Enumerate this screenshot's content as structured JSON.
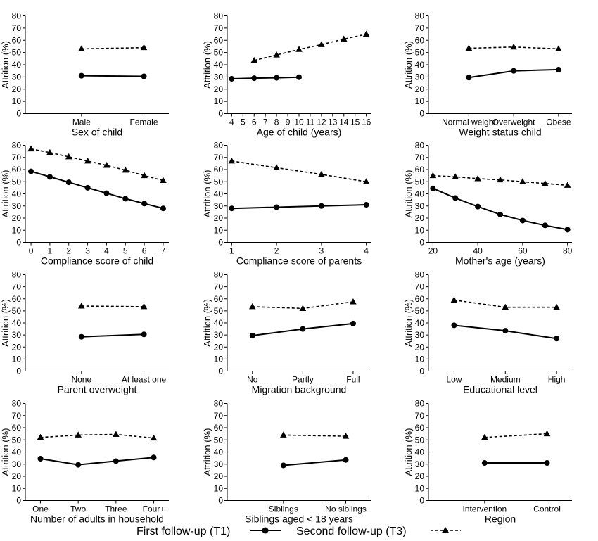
{
  "colors": {
    "axis": "#000000",
    "series": "#000000",
    "background": "#ffffff"
  },
  "legend": {
    "t1_label": "First follow-up (T1)",
    "t3_label": "Second follow-up (T3)",
    "t1_marker": "circle",
    "t3_marker": "triangle",
    "t1_line": "solid",
    "t3_line": "dashed"
  },
  "chart_data": [
    {
      "type": "line",
      "xlabel": "Sex of child",
      "ylabel": "Attrition (%)",
      "ylim": [
        0,
        80
      ],
      "yticks": [
        0,
        10,
        20,
        30,
        40,
        50,
        60,
        70,
        80
      ],
      "categories": [
        "Male",
        "Female"
      ],
      "xlim": [
        -0.9,
        1.4
      ],
      "series": [
        {
          "name": "First follow-up (T1)",
          "values": [
            31,
            30.5
          ]
        },
        {
          "name": "Second follow-up (T3)",
          "values": [
            53,
            54
          ]
        }
      ]
    },
    {
      "type": "line",
      "xlabel": "Age of child (years)",
      "ylabel": "Attrition (%)",
      "ylim": [
        0,
        80
      ],
      "yticks": [
        0,
        10,
        20,
        30,
        40,
        50,
        60,
        70,
        80
      ],
      "x": [
        4,
        5,
        6,
        7,
        8,
        9,
        10,
        11,
        12,
        13,
        14,
        15,
        16
      ],
      "xlim": [
        3.6,
        16.4
      ],
      "xticks": [
        4,
        5,
        6,
        7,
        8,
        9,
        10,
        11,
        12,
        13,
        14,
        15,
        16
      ],
      "series": [
        {
          "name": "First follow-up (T1)",
          "x": [
            4,
            6,
            8,
            10
          ],
          "values": [
            28.5,
            29,
            29.3,
            29.8
          ]
        },
        {
          "name": "Second follow-up (T3)",
          "x": [
            6,
            8,
            10,
            12,
            14,
            16
          ],
          "values": [
            43.5,
            48,
            52.5,
            56.5,
            61,
            65
          ]
        }
      ]
    },
    {
      "type": "line",
      "xlabel": "Weight status child",
      "ylabel": "Attrition (%)",
      "ylim": [
        0,
        80
      ],
      "yticks": [
        0,
        10,
        20,
        30,
        40,
        50,
        60,
        70,
        80
      ],
      "categories": [
        "Normal weight",
        "Overweight",
        "Obese"
      ],
      "xlim": [
        -0.9,
        2.3
      ],
      "series": [
        {
          "name": "First follow-up (T1)",
          "values": [
            29.5,
            35,
            36
          ]
        },
        {
          "name": "Second follow-up (T3)",
          "values": [
            53.5,
            54.5,
            53
          ]
        }
      ]
    },
    {
      "type": "line",
      "xlabel": "Compliance score of child",
      "ylabel": "Attrition (%)",
      "ylim": [
        0,
        80
      ],
      "yticks": [
        0,
        10,
        20,
        30,
        40,
        50,
        60,
        70,
        80
      ],
      "x": [
        0,
        1,
        2,
        3,
        4,
        5,
        6,
        7
      ],
      "xlim": [
        -0.3,
        7.3
      ],
      "xticks": [
        0,
        1,
        2,
        3,
        4,
        5,
        6,
        7
      ],
      "series": [
        {
          "name": "First follow-up (T1)",
          "values": [
            58.5,
            54,
            49.5,
            45,
            40.5,
            36,
            32,
            28
          ]
        },
        {
          "name": "Second follow-up (T3)",
          "values": [
            77,
            74,
            70.5,
            67,
            63.5,
            59.5,
            55,
            51
          ]
        }
      ]
    },
    {
      "type": "line",
      "xlabel": "Compliance score of parents",
      "ylabel": "Attrition (%)",
      "ylim": [
        0,
        80
      ],
      "yticks": [
        0,
        10,
        20,
        30,
        40,
        50,
        60,
        70,
        80
      ],
      "x": [
        1,
        2,
        3,
        4
      ],
      "xlim": [
        0.9,
        4.1
      ],
      "xticks": [
        1,
        2,
        3,
        4
      ],
      "series": [
        {
          "name": "First follow-up (T1)",
          "values": [
            28,
            29,
            30,
            31
          ]
        },
        {
          "name": "Second follow-up (T3)",
          "values": [
            67,
            61.5,
            56,
            50
          ]
        }
      ]
    },
    {
      "type": "line",
      "xlabel": "Mother's age (years)",
      "ylabel": "Attrition (%)",
      "ylim": [
        0,
        80
      ],
      "yticks": [
        0,
        10,
        20,
        30,
        40,
        50,
        60,
        70,
        80
      ],
      "x": [
        20,
        30,
        40,
        50,
        60,
        70,
        80
      ],
      "xlim": [
        18,
        82
      ],
      "xticks": [
        20,
        40,
        60,
        80
      ],
      "series": [
        {
          "name": "First follow-up (T1)",
          "values": [
            44.5,
            36.5,
            29.5,
            23,
            18,
            14,
            10.5
          ]
        },
        {
          "name": "Second follow-up (T3)",
          "values": [
            55,
            54,
            52.5,
            51.5,
            50,
            48.5,
            47
          ]
        }
      ]
    },
    {
      "type": "line",
      "xlabel": "Parent overweight",
      "ylabel": "Attrition (%)",
      "ylim": [
        0,
        80
      ],
      "yticks": [
        0,
        10,
        20,
        30,
        40,
        50,
        60,
        70,
        80
      ],
      "categories": [
        "None",
        "At least one"
      ],
      "xlim": [
        -0.9,
        1.4
      ],
      "series": [
        {
          "name": "First follow-up (T1)",
          "values": [
            28.5,
            30.5
          ]
        },
        {
          "name": "Second follow-up (T3)",
          "values": [
            54,
            53.5
          ]
        }
      ]
    },
    {
      "type": "line",
      "xlabel": "Migration background",
      "ylabel": "Attrition (%)",
      "ylim": [
        0,
        80
      ],
      "yticks": [
        0,
        10,
        20,
        30,
        40,
        50,
        60,
        70,
        80
      ],
      "categories": [
        "No",
        "Partly",
        "Full"
      ],
      "xlim": [
        -0.5,
        2.35
      ],
      "series": [
        {
          "name": "First follow-up (T1)",
          "values": [
            29.5,
            35,
            39.5
          ]
        },
        {
          "name": "Second follow-up (T3)",
          "values": [
            53.5,
            52,
            57.5
          ]
        }
      ]
    },
    {
      "type": "line",
      "xlabel": "Educational level",
      "ylabel": "Attrition (%)",
      "ylim": [
        0,
        80
      ],
      "yticks": [
        0,
        10,
        20,
        30,
        40,
        50,
        60,
        70,
        80
      ],
      "categories": [
        "Low",
        "Medium",
        "High"
      ],
      "xlim": [
        -0.5,
        2.3
      ],
      "series": [
        {
          "name": "First follow-up (T1)",
          "values": [
            38,
            33.5,
            27
          ]
        },
        {
          "name": "Second follow-up (T3)",
          "values": [
            59,
            53,
            53
          ]
        }
      ]
    },
    {
      "type": "line",
      "xlabel": "Number of adults in household",
      "ylabel": "Attrition (%)",
      "ylim": [
        0,
        80
      ],
      "yticks": [
        0,
        10,
        20,
        30,
        40,
        50,
        60,
        70,
        80
      ],
      "categories": [
        "One",
        "Two",
        "Three",
        "Four+"
      ],
      "xlim": [
        -0.4,
        3.4
      ],
      "series": [
        {
          "name": "First follow-up (T1)",
          "values": [
            34.5,
            29.5,
            32.5,
            35.5
          ]
        },
        {
          "name": "Second follow-up (T3)",
          "values": [
            52,
            54,
            54.5,
            51.5
          ]
        }
      ]
    },
    {
      "type": "line",
      "xlabel": "Siblings aged < 18 years",
      "ylabel": "Attrition (%)",
      "ylim": [
        0,
        80
      ],
      "yticks": [
        0,
        10,
        20,
        30,
        40,
        50,
        60,
        70,
        80
      ],
      "categories": [
        "Siblings",
        "No siblings"
      ],
      "xlim": [
        -0.9,
        1.4
      ],
      "series": [
        {
          "name": "First follow-up (T1)",
          "values": [
            29,
            33.5
          ]
        },
        {
          "name": "Second follow-up (T3)",
          "values": [
            54,
            53
          ]
        }
      ]
    },
    {
      "type": "line",
      "xlabel": "Region",
      "ylabel": "Attrition (%)",
      "ylim": [
        0,
        80
      ],
      "yticks": [
        0,
        10,
        20,
        30,
        40,
        50,
        60,
        70,
        80
      ],
      "categories": [
        "Intervention",
        "Control"
      ],
      "xlim": [
        -0.9,
        1.4
      ],
      "series": [
        {
          "name": "First follow-up (T1)",
          "values": [
            31,
            31
          ]
        },
        {
          "name": "Second follow-up (T3)",
          "values": [
            52,
            55
          ]
        }
      ]
    }
  ]
}
